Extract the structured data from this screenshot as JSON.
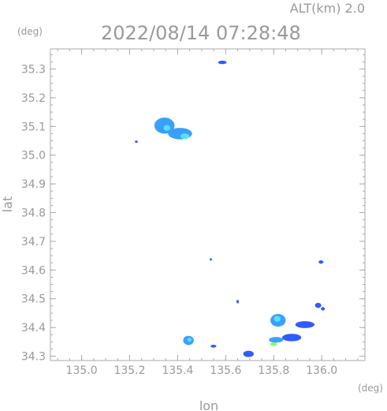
{
  "header": {
    "alt_text": "ALT(km) 2.0",
    "timestamp": "2022/08/14 07:28:48"
  },
  "chart_data": {
    "type": "scatter",
    "xlabel": "lon",
    "ylabel": "lat",
    "x_unit": "(deg)",
    "y_unit": "(deg)",
    "xlim": [
      134.87,
      136.18
    ],
    "ylim": [
      34.285,
      35.37
    ],
    "x_ticks": [
      135.0,
      135.2,
      135.4,
      135.6,
      135.8,
      136.0
    ],
    "x_tick_labels": [
      "135.0",
      "135.2",
      "135.4",
      "135.6",
      "135.8",
      "136.0"
    ],
    "y_ticks": [
      34.3,
      34.4,
      34.5,
      34.6,
      34.7,
      34.8,
      34.9,
      35.0,
      35.1,
      35.2,
      35.3
    ],
    "y_tick_labels": [
      "34.3",
      "34.4",
      "34.5",
      "34.6",
      "34.7",
      "34.8",
      "34.9",
      "35.0",
      "35.1",
      "35.2",
      "35.3"
    ],
    "minor_tick_step_x": 0.05,
    "minor_tick_step_y": 0.025,
    "grid": false,
    "colors": {
      "low": "#2f5cff",
      "mid": "#3aa0ff",
      "high": "#55e0ff",
      "peak": "#88ff55"
    },
    "echoes": [
      {
        "lon": 135.586,
        "lat": 35.323,
        "rlon": 0.018,
        "rlat": 0.006,
        "level": "low"
      },
      {
        "lon": 135.345,
        "lat": 35.103,
        "rlon": 0.042,
        "rlat": 0.028,
        "level": "mid"
      },
      {
        "lon": 135.41,
        "lat": 35.075,
        "rlon": 0.05,
        "rlat": 0.02,
        "level": "mid"
      },
      {
        "lon": 135.43,
        "lat": 35.066,
        "rlon": 0.018,
        "rlat": 0.01,
        "level": "high"
      },
      {
        "lon": 135.355,
        "lat": 35.095,
        "rlon": 0.014,
        "rlat": 0.01,
        "level": "high"
      },
      {
        "lon": 135.228,
        "lat": 35.047,
        "rlon": 0.006,
        "rlat": 0.004,
        "level": "low"
      },
      {
        "lon": 135.538,
        "lat": 34.637,
        "rlon": 0.004,
        "rlat": 0.003,
        "level": "low"
      },
      {
        "lon": 135.997,
        "lat": 34.628,
        "rlon": 0.01,
        "rlat": 0.006,
        "level": "low"
      },
      {
        "lon": 135.65,
        "lat": 34.49,
        "rlon": 0.005,
        "rlat": 0.006,
        "level": "low"
      },
      {
        "lon": 135.985,
        "lat": 34.477,
        "rlon": 0.013,
        "rlat": 0.009,
        "level": "low"
      },
      {
        "lon": 136.005,
        "lat": 34.465,
        "rlon": 0.008,
        "rlat": 0.006,
        "level": "low"
      },
      {
        "lon": 135.818,
        "lat": 34.425,
        "rlon": 0.032,
        "rlat": 0.022,
        "level": "mid"
      },
      {
        "lon": 135.815,
        "lat": 34.43,
        "rlon": 0.014,
        "rlat": 0.01,
        "level": "high"
      },
      {
        "lon": 135.93,
        "lat": 34.41,
        "rlon": 0.04,
        "rlat": 0.012,
        "level": "low"
      },
      {
        "lon": 135.875,
        "lat": 34.365,
        "rlon": 0.04,
        "rlat": 0.013,
        "level": "low"
      },
      {
        "lon": 135.81,
        "lat": 34.357,
        "rlon": 0.03,
        "rlat": 0.01,
        "level": "mid"
      },
      {
        "lon": 135.8,
        "lat": 34.342,
        "rlon": 0.015,
        "rlat": 0.006,
        "level": "peak"
      },
      {
        "lon": 135.445,
        "lat": 34.355,
        "rlon": 0.022,
        "rlat": 0.016,
        "level": "mid"
      },
      {
        "lon": 135.449,
        "lat": 34.357,
        "rlon": 0.009,
        "rlat": 0.007,
        "level": "high"
      },
      {
        "lon": 135.549,
        "lat": 34.335,
        "rlon": 0.012,
        "rlat": 0.005,
        "level": "low"
      },
      {
        "lon": 135.695,
        "lat": 34.308,
        "rlon": 0.022,
        "rlat": 0.011,
        "level": "low"
      }
    ]
  }
}
